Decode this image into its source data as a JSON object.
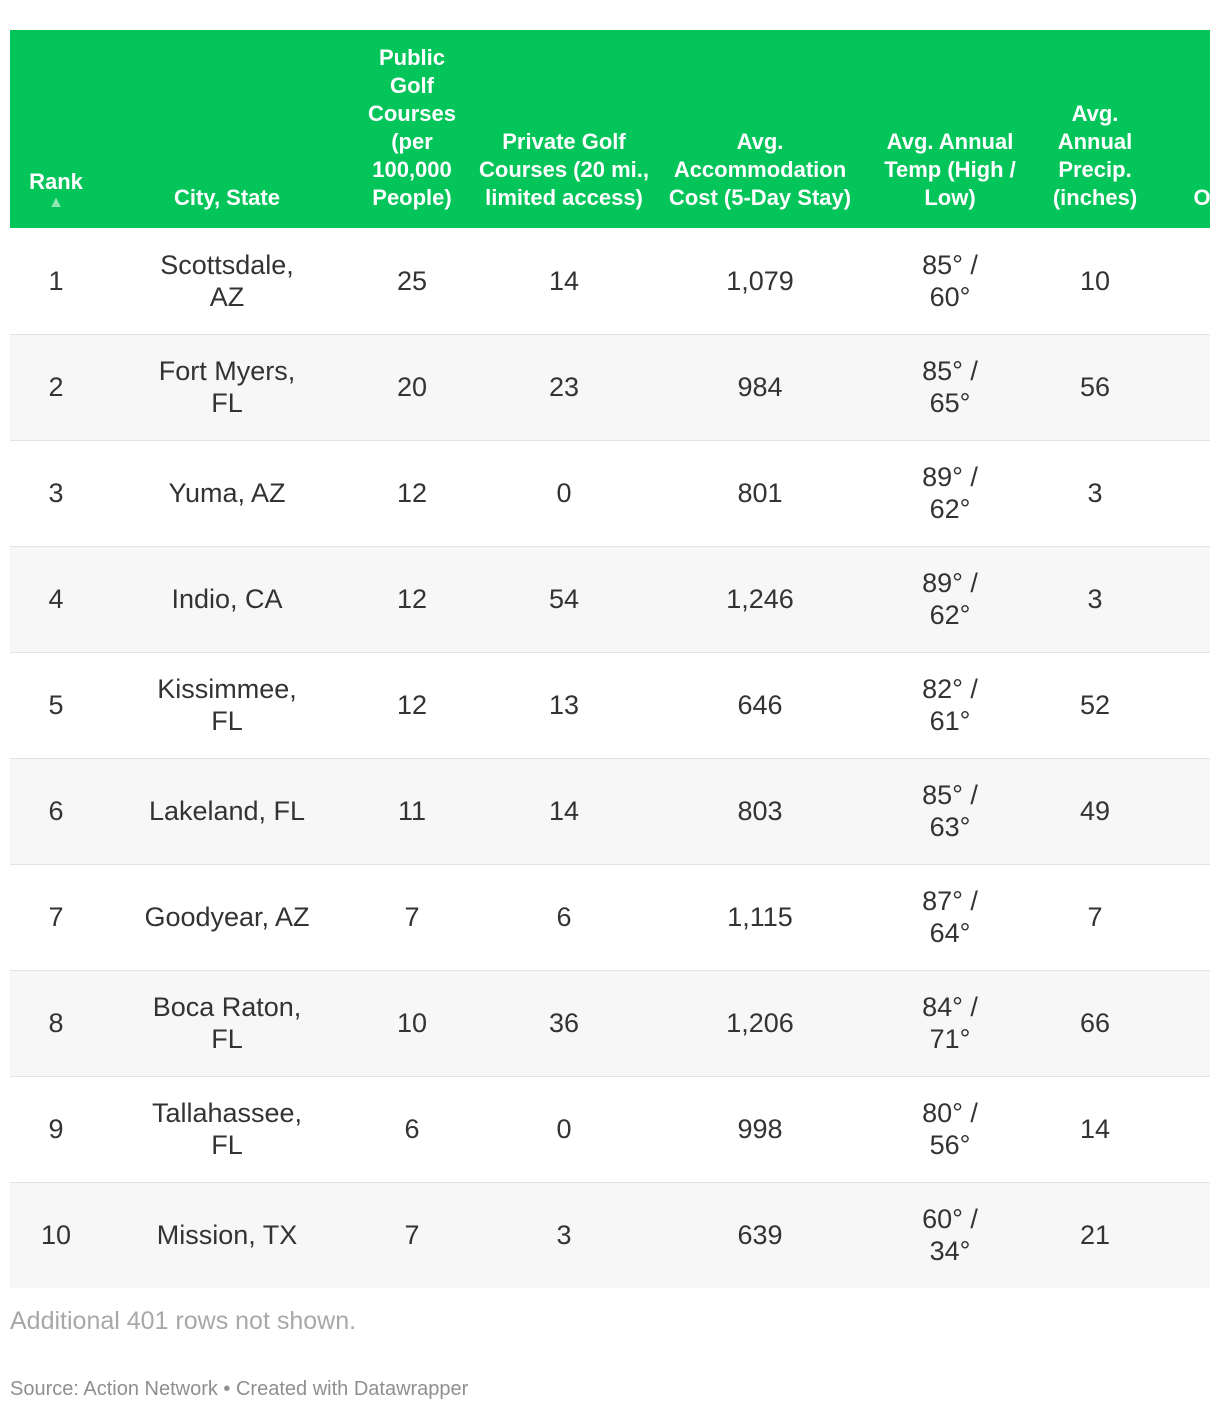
{
  "chart_data": {
    "type": "table",
    "columns": [
      {
        "label": "Rank",
        "sorted": "ascending"
      },
      {
        "label": "City, State"
      },
      {
        "label": "Public Golf Courses (per 100,000 People)"
      },
      {
        "label": "Private Golf Courses (20 mi., limited access)"
      },
      {
        "label": "Avg. Accommodation Cost (5-Day Stay)"
      },
      {
        "label": "Avg. Annual Temp (High / Low)"
      },
      {
        "label": "Avg. Annual Precip. (inches)"
      },
      {
        "label": "O"
      }
    ],
    "rows": [
      {
        "rank": "1",
        "city": "Scottsdale, AZ",
        "public": "25",
        "private": "14",
        "cost": "1,079",
        "temp": "85° / 60°",
        "precip": "10",
        "overflow": ""
      },
      {
        "rank": "2",
        "city": "Fort Myers, FL",
        "public": "20",
        "private": "23",
        "cost": "984",
        "temp": "85° / 65°",
        "precip": "56",
        "overflow": ""
      },
      {
        "rank": "3",
        "city": "Yuma, AZ",
        "public": "12",
        "private": "0",
        "cost": "801",
        "temp": "89° / 62°",
        "precip": "3",
        "overflow": ""
      },
      {
        "rank": "4",
        "city": "Indio, CA",
        "public": "12",
        "private": "54",
        "cost": "1,246",
        "temp": "89° / 62°",
        "precip": "3",
        "overflow": ""
      },
      {
        "rank": "5",
        "city": "Kissimmee, FL",
        "public": "12",
        "private": "13",
        "cost": "646",
        "temp": "82° / 61°",
        "precip": "52",
        "overflow": ""
      },
      {
        "rank": "6",
        "city": "Lakeland, FL",
        "public": "11",
        "private": "14",
        "cost": "803",
        "temp": "85° / 63°",
        "precip": "49",
        "overflow": ""
      },
      {
        "rank": "7",
        "city": "Goodyear, AZ",
        "public": "7",
        "private": "6",
        "cost": "1,115",
        "temp": "87° / 64°",
        "precip": "7",
        "overflow": ""
      },
      {
        "rank": "8",
        "city": "Boca Raton, FL",
        "public": "10",
        "private": "36",
        "cost": "1,206",
        "temp": "84° / 71°",
        "precip": "66",
        "overflow": ""
      },
      {
        "rank": "9",
        "city": "Tallahassee, FL",
        "public": "6",
        "private": "0",
        "cost": "998",
        "temp": "80° / 56°",
        "precip": "14",
        "overflow": ""
      },
      {
        "rank": "10",
        "city": "Mission, TX",
        "public": "7",
        "private": "3",
        "cost": "639",
        "temp": "60° / 34°",
        "precip": "21",
        "overflow": ""
      }
    ],
    "footnote": "Additional 401 rows not shown.",
    "source": "Source: Action Network • Created with Datawrapper"
  },
  "colors": {
    "header_bg": "#04c55a",
    "header_text": "#ffffff",
    "sort_arrow": "#8fe8b4",
    "alt_row_bg": "#f7f7f7",
    "row_border": "#e2e2e2",
    "footnote_text": "#a8a8a8"
  },
  "icons": {
    "sort": "sort-ascending-icon"
  }
}
